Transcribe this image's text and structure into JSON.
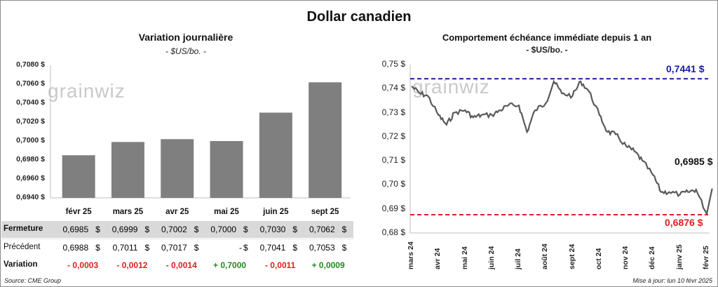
{
  "main_title": "Dollar canadien",
  "left": {
    "title": "Variation  journalière",
    "subtitle": "- $US/bo. -",
    "watermark": "grainwiz",
    "yticks": [
      "0,7080 $",
      "0,7060 $",
      "0,7040 $",
      "0,7020 $",
      "0,7000 $",
      "0,6980 $",
      "0,6960 $",
      "0,6940 $"
    ],
    "table": {
      "labels": [
        "Fermeture",
        "Précédent",
        "Variation"
      ],
      "fermeture": [
        "0,6985",
        "0,6999",
        "0,7002",
        "0,7000",
        "0,7030",
        "0,7062"
      ],
      "precedent": [
        "0,6988",
        "0,7011",
        "0,7017",
        "-",
        "0,7041",
        "0,7053"
      ],
      "variation": [
        "- 0,0003",
        "- 0,0012",
        "- 0,0014",
        "+ 0,7000",
        "- 0,0011",
        "+ 0,0009"
      ],
      "dollar": "$",
      "negative_color": "#e0201c",
      "positive_color": "#1f8a1f",
      "highlight_fill": "#d9d9d9"
    }
  },
  "right": {
    "title": "Comportement échéance immédiate depuis 1 an",
    "subtitle": "- $US/bo. -",
    "watermark": "grainwiz",
    "yticks": [
      "0,75 $",
      "0,74 $",
      "0,73 $",
      "0,72 $",
      "0,71 $",
      "0,70 $",
      "0,69 $",
      "0,68 $"
    ],
    "xticks": [
      "mars 24",
      "avr 24",
      "mai 24",
      "juin 24",
      "juil 24",
      "août 24",
      "sept 24",
      "oct 24",
      "nov 24",
      "déc 24",
      "janv 25",
      "févr 25"
    ],
    "high_label": "0,7441 $",
    "low_label": "0,6876 $",
    "last_label": "0,6985 $",
    "high_color": "#1a1aa8",
    "low_color": "#e0201c"
  },
  "footer": {
    "source": "Source: CME Group",
    "update": "Mise à jour: lun 10 févr 2025"
  },
  "chart_data": [
    {
      "type": "bar",
      "title": "Variation  journalière",
      "subtitle": "- $US/bo. -",
      "categories": [
        "févr 25",
        "mars 25",
        "avr 25",
        "mai 25",
        "juin 25",
        "sept 25"
      ],
      "values": [
        0.6985,
        0.6999,
        0.7002,
        0.7,
        0.703,
        0.7062
      ],
      "ylim": [
        0.694,
        0.708
      ],
      "bar_color": "#7f7f7f",
      "grid": false
    },
    {
      "type": "line",
      "title": "Comportement échéance immédiate depuis 1 an",
      "subtitle": "- $US/bo. -",
      "ylim": [
        0.68,
        0.75
      ],
      "x_range": [
        "mars 24",
        "févr 25"
      ],
      "line_color": "#595959",
      "grid": false,
      "reference_lines": [
        {
          "label": "0,7441 $",
          "value": 0.7441,
          "color": "#1a1aa8",
          "style": "dashed"
        },
        {
          "label": "0,6876 $",
          "value": 0.6876,
          "color": "#e0201c",
          "style": "dashed"
        }
      ],
      "last_value": 0.6985,
      "x": [
        0,
        0.3,
        0.6,
        1,
        1.3,
        1.6,
        2,
        2.3,
        2.6,
        3,
        3.3,
        3.6,
        4,
        4.3,
        4.6,
        5,
        5.3,
        5.6,
        6,
        6.3,
        6.6,
        7,
        7.3,
        7.6,
        8,
        8.3,
        8.6,
        9,
        9.3,
        9.6,
        10,
        10.3,
        10.6,
        11,
        11.2
      ],
      "values": [
        0.741,
        0.738,
        0.737,
        0.729,
        0.725,
        0.73,
        0.731,
        0.728,
        0.729,
        0.729,
        0.731,
        0.733,
        0.733,
        0.722,
        0.731,
        0.734,
        0.743,
        0.738,
        0.737,
        0.743,
        0.739,
        0.729,
        0.722,
        0.721,
        0.716,
        0.714,
        0.71,
        0.704,
        0.697,
        0.697,
        0.696,
        0.697,
        0.698,
        0.688,
        0.6985
      ]
    }
  ]
}
